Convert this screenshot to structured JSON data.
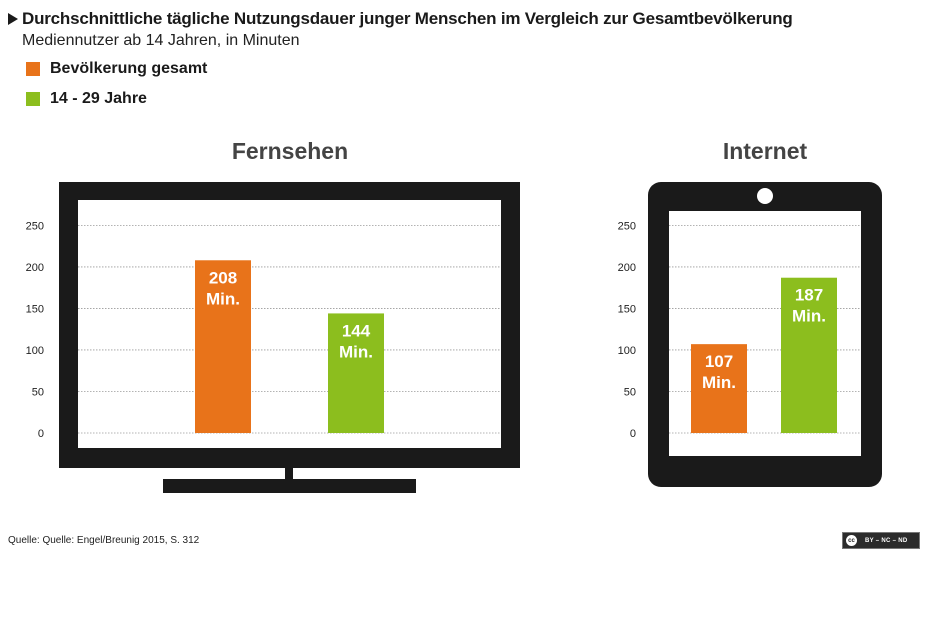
{
  "header": {
    "title": "Durchschnittliche tägliche Nutzungsdauer junger Menschen im Vergleich zur Gesamtbevölkerung",
    "subtitle": "Mediennutzer ab 14 Jahren, in Minuten"
  },
  "legend": [
    {
      "label": "Bevölkerung gesamt",
      "color": "#e8731a"
    },
    {
      "label": "14 - 29 Jahre",
      "color": "#8cbe1e"
    }
  ],
  "footer": {
    "source": "Quelle: Quelle: Engel/Breunig 2015, S. 312",
    "license_icon": "cc",
    "license": "BY – NC – ND"
  },
  "chart_data": [
    {
      "type": "bar",
      "title": "Fernsehen",
      "device": "tv-icon",
      "categories": [
        "Bevölkerung gesamt",
        "14 - 29 Jahre"
      ],
      "values": [
        208,
        144
      ],
      "value_labels": [
        "208\nMin.",
        "144\nMin."
      ],
      "colors": [
        "#e8731a",
        "#8cbe1e"
      ],
      "yticks": [
        "0",
        "50",
        "100",
        "150",
        "200",
        "250"
      ],
      "ylim": [
        0,
        250
      ],
      "grid": true
    },
    {
      "type": "bar",
      "title": "Internet",
      "device": "tablet-icon",
      "categories": [
        "Bevölkerung gesamt",
        "14 - 29 Jahre"
      ],
      "values": [
        107,
        187
      ],
      "value_labels": [
        "107\nMin.",
        "187\nMin."
      ],
      "colors": [
        "#e8731a",
        "#8cbe1e"
      ],
      "yticks": [
        "0",
        "50",
        "100",
        "150",
        "200",
        "250"
      ],
      "ylim": [
        0,
        250
      ],
      "grid": true
    }
  ]
}
